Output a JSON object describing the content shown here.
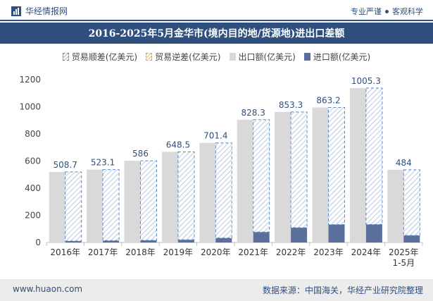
{
  "header": {
    "brand": "华经情报网",
    "slogan_left": "专业严谨",
    "slogan_right": "客观科学"
  },
  "chart_data": {
    "type": "bar",
    "title": "2016-2025年5月金华市(境内目的地/货源地)进出口差额",
    "categories": [
      "2016年",
      "2017年",
      "2018年",
      "2019年",
      "2020年",
      "2021年",
      "2022年",
      "2023年",
      "2024年",
      "2025年\n1-5月"
    ],
    "series": [
      {
        "name": "贸易顺差(亿美元)",
        "values": [
          508.7,
          523.1,
          586,
          648.5,
          701.4,
          828.3,
          853.3,
          863.2,
          1005.3,
          484
        ],
        "color": "#5a8ac6"
      },
      {
        "name": "贸易逆差(亿美元)",
        "values": [
          0,
          0,
          0,
          0,
          0,
          0,
          0,
          0,
          0,
          0
        ],
        "color": "#d8a93b"
      },
      {
        "name": "出口额(亿美元)",
        "values": [
          520,
          537,
          602,
          668,
          734,
          905,
          962,
          995,
          1138,
          536
        ],
        "color": "#d9d9d9"
      },
      {
        "name": "进口额(亿美元)",
        "values": [
          11,
          14,
          16,
          20,
          33,
          77,
          109,
          132,
          133,
          52
        ],
        "color": "#5b6f9c"
      }
    ],
    "data_labels": [
      "508.7",
      "523.1",
      "586",
      "648.5",
      "701.4",
      "828.3",
      "853.3",
      "863.2",
      "1005.3",
      "484"
    ],
    "yticks": [
      0,
      200,
      400,
      600,
      800,
      1000,
      1200
    ],
    "ylim": [
      0,
      1200
    ],
    "xlabel": "",
    "ylabel": "",
    "legend": "top",
    "grid": false
  },
  "footer": {
    "website": "www.huaon.com",
    "source": "数据来源：中国海关，华经产业研究院整理"
  }
}
